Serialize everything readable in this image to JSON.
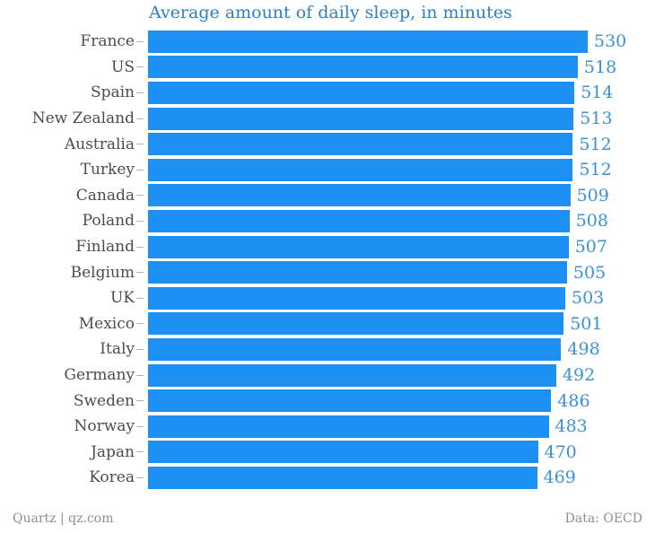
{
  "title": "Average amount of daily sleep, in minutes",
  "footer": {
    "left": "Quartz | qz.com",
    "right": "Data: OECD"
  },
  "colors": {
    "background": "#ffffff",
    "bar": "#1c90f3",
    "title-text": "#2d80c4",
    "value-text": "#3b92d4",
    "label-text": "#4c4c4c",
    "tick": "#b3b3b3",
    "footer-text": "#8e8e8e"
  },
  "chart_data": {
    "type": "bar",
    "orientation": "horizontal",
    "title": "Average amount of daily sleep, in minutes",
    "xlabel": "",
    "ylabel": "",
    "xlim": [
      0,
      530
    ],
    "grid": false,
    "legend": false,
    "value_labels": "end-of-bar",
    "categories": [
      "France",
      "US",
      "Spain",
      "New Zealand",
      "Australia",
      "Turkey",
      "Canada",
      "Poland",
      "Finland",
      "Belgium",
      "UK",
      "Mexico",
      "Italy",
      "Germany",
      "Sweden",
      "Norway",
      "Japan",
      "Korea"
    ],
    "values": [
      530,
      518,
      514,
      513,
      512,
      512,
      509,
      508,
      507,
      505,
      503,
      501,
      498,
      492,
      486,
      483,
      470,
      469
    ]
  }
}
